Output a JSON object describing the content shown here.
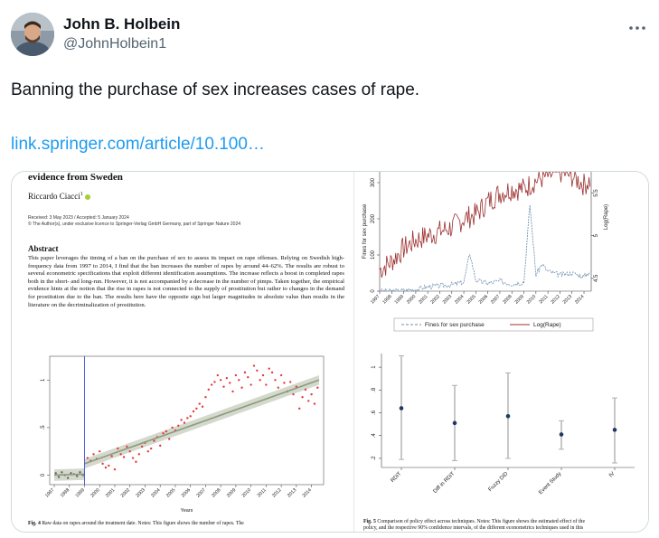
{
  "author": {
    "name": "John B. Holbein",
    "handle": "@JohnHolbein1",
    "avatar_icon": "person-avatar"
  },
  "more_icon": "more-horizontal-icon",
  "tweet": {
    "text": "Banning the purchase of sex increases cases of rape.",
    "link": "link.springer.com/article/10.100…"
  },
  "paper": {
    "title": "evidence from Sweden",
    "author": "Riccardo Ciacci",
    "author_sup": "1",
    "received": "Received: 3 May 2023 / Accepted: 5 January 2024",
    "copyright": "© The Author(s), under exclusive licence to Springer-Verlag GmbH Germany, part of Springer Nature 2024",
    "abstract_heading": "Abstract",
    "abstract": "This paper leverages the timing of a ban on the purchase of sex to assess its impact on rape offenses. Relying on Swedish high-frequency data from 1997 to 2014, I find that the ban increases the number of rapes by around 44–62%. The results are robust to several econometric specifications that exploit different identification assumptions. The increase reflects a boost in completed rapes both in the short- and long-run. However, it is not accompanied by a decrease in the number of pimps. Taken together, the empirical evidence hints at the notion that the rise in rapes is not connected to the supply of prostitution but rather to changes in the demand for prostitution due to the ban. The results here have the opposite sign but larger magnitudes in absolute value than results in the literature on the decriminalization of prostitution.",
    "fig4_caption_label": "Fig. 4",
    "fig4_caption": "Raw data on rapes around the treatment date. Notes: This figure shows the number of rapes. The",
    "fig5_caption_label": "Fig. 5",
    "fig5_caption": "Comparison of policy effect across techniques. Notes: This figure shows the estimated effect of the",
    "fig5_caption_line2": "policy, and the respective 90% confidence intervals, of the different econometrics techniques used in this"
  },
  "chart_data": [
    {
      "type": "scatter",
      "title": "",
      "xlabel": "Years",
      "ylabel": "",
      "x_ticks": [
        "1997",
        "1998",
        "1999",
        "2000",
        "2001",
        "2002",
        "2003",
        "2004",
        "2005",
        "2006",
        "2007",
        "2008",
        "2009",
        "2010",
        "2011",
        "2012",
        "2013",
        "2014"
      ],
      "y_ticks": [
        "0",
        ".5",
        "1"
      ],
      "ylim": [
        -0.1,
        1.25
      ],
      "treatment_year": 1999,
      "series": [
        {
          "values": [
            [
              1997.1,
              0.02
            ],
            [
              1997.3,
              -0.02
            ],
            [
              1997.5,
              0.03
            ],
            [
              1997.7,
              0.0
            ],
            [
              1997.9,
              -0.03
            ],
            [
              1998.1,
              0.02
            ],
            [
              1998.3,
              0.01
            ],
            [
              1998.5,
              -0.01
            ],
            [
              1998.7,
              0.03
            ],
            [
              1998.9,
              0.0
            ],
            [
              1999.2,
              0.18
            ],
            [
              1999.4,
              0.15
            ],
            [
              1999.6,
              0.22
            ],
            [
              1999.8,
              0.17
            ],
            [
              2000.0,
              0.25
            ],
            [
              2000.2,
              0.12
            ],
            [
              2000.4,
              0.08
            ],
            [
              2000.6,
              0.1
            ],
            [
              2000.8,
              0.2
            ],
            [
              2001.0,
              0.06
            ],
            [
              2001.2,
              0.28
            ],
            [
              2001.4,
              0.22
            ],
            [
              2001.6,
              0.19
            ],
            [
              2001.8,
              0.3
            ],
            [
              2002.0,
              0.25
            ],
            [
              2002.2,
              0.18
            ],
            [
              2002.4,
              0.14
            ],
            [
              2002.6,
              0.22
            ],
            [
              2002.8,
              0.3
            ],
            [
              2003.0,
              0.34
            ],
            [
              2003.2,
              0.25
            ],
            [
              2003.4,
              0.28
            ],
            [
              2003.6,
              0.36
            ],
            [
              2003.8,
              0.4
            ],
            [
              2004.0,
              0.31
            ],
            [
              2004.2,
              0.44
            ],
            [
              2004.4,
              0.46
            ],
            [
              2004.6,
              0.38
            ],
            [
              2004.8,
              0.5
            ],
            [
              2005.0,
              0.47
            ],
            [
              2005.2,
              0.52
            ],
            [
              2005.4,
              0.58
            ],
            [
              2005.6,
              0.55
            ],
            [
              2005.8,
              0.6
            ],
            [
              2006.0,
              0.62
            ],
            [
              2006.2,
              0.67
            ],
            [
              2006.4,
              0.7
            ],
            [
              2006.6,
              0.75
            ],
            [
              2006.8,
              0.72
            ],
            [
              2007.0,
              0.82
            ],
            [
              2007.2,
              0.9
            ],
            [
              2007.4,
              0.95
            ],
            [
              2007.6,
              0.98
            ],
            [
              2007.8,
              1.05
            ],
            [
              2008.0,
              1.0
            ],
            [
              2008.2,
              0.93
            ],
            [
              2008.4,
              1.02
            ],
            [
              2008.6,
              0.97
            ],
            [
              2008.8,
              0.88
            ],
            [
              2009.0,
              1.05
            ],
            [
              2009.2,
              1.0
            ],
            [
              2009.4,
              0.92
            ],
            [
              2009.6,
              1.08
            ],
            [
              2009.8,
              1.03
            ],
            [
              2010.0,
              0.95
            ],
            [
              2010.2,
              1.15
            ],
            [
              2010.4,
              1.1
            ],
            [
              2010.6,
              1.0
            ],
            [
              2010.8,
              1.05
            ],
            [
              2011.0,
              0.95
            ],
            [
              2011.2,
              1.12
            ],
            [
              2011.4,
              1.08
            ],
            [
              2011.6,
              1.0
            ],
            [
              2011.8,
              0.92
            ],
            [
              2012.0,
              1.05
            ],
            [
              2012.2,
              0.97
            ],
            [
              2012.4,
              0.88
            ],
            [
              2012.6,
              0.98
            ],
            [
              2012.8,
              0.85
            ],
            [
              2013.0,
              0.93
            ],
            [
              2013.2,
              0.7
            ],
            [
              2013.4,
              0.82
            ],
            [
              2013.6,
              0.9
            ],
            [
              2013.8,
              0.78
            ],
            [
              2014.0,
              0.85
            ],
            [
              2014.2,
              0.75
            ],
            [
              2014.4,
              0.92
            ]
          ]
        }
      ],
      "fit_lines": [
        {
          "x": [
            1997,
            1999
          ],
          "y": [
            0.0,
            0.01
          ]
        },
        {
          "x": [
            1999,
            2014.5
          ],
          "y": [
            0.12,
            1.0
          ]
        }
      ],
      "colors": {
        "points": "#e5393b",
        "fit": "#8e9b7d",
        "ci": "#c8cfc0",
        "treatment": "#3b4fd8"
      },
      "grid": false
    },
    {
      "type": "line",
      "title": "",
      "x_ticks": [
        "1997",
        "1998",
        "1999",
        "2000",
        "2001",
        "2002",
        "2003",
        "2004",
        "2005",
        "2006",
        "2007",
        "2008",
        "2009",
        "2010",
        "2011",
        "2012",
        "2013",
        "2014"
      ],
      "ylabel_left": "Fines for sex purchase",
      "ylabel_right": "Log(Rape)",
      "y_left_ticks": [
        "0",
        "100",
        "200",
        "300"
      ],
      "y_right_ticks": [
        "4.5",
        "5",
        "5.5"
      ],
      "ylim_left": [
        0,
        300
      ],
      "ylim_right": [
        4.35,
        5.75
      ],
      "legend": {
        "position": "bottom",
        "entries": [
          "Fines for sex purchase",
          "Log(Rape)"
        ]
      },
      "series": [
        {
          "name": "Fines for sex purchase",
          "axis": "left",
          "style": "dashed",
          "color": "#6b8cad",
          "x": [
            1997,
            1998,
            1999,
            2000,
            2001,
            2002,
            2003,
            2004,
            2004.5,
            2005,
            2006,
            2007,
            2008,
            2009,
            2009.5,
            2010,
            2010.5,
            2011,
            2012,
            2013,
            2014,
            2014.5
          ],
          "values": [
            0,
            0,
            2,
            5,
            12,
            15,
            18,
            25,
            105,
            30,
            22,
            28,
            20,
            25,
            240,
            45,
            75,
            55,
            45,
            50,
            40,
            55
          ]
        },
        {
          "name": "Log(Rape)",
          "axis": "right",
          "style": "solid",
          "color": "#9b3030",
          "x": [
            1997,
            1998,
            1999,
            2000,
            2001,
            2002,
            2003,
            2004,
            2005,
            2006,
            2007,
            2008,
            2009,
            2010,
            2011,
            2012,
            2013,
            2014,
            2014.5
          ],
          "values": [
            4.6,
            4.7,
            4.85,
            4.95,
            5.0,
            5.05,
            5.1,
            5.2,
            5.25,
            5.4,
            5.5,
            5.55,
            5.55,
            5.65,
            5.7,
            5.75,
            5.7,
            5.6,
            5.65
          ]
        }
      ],
      "grid": false
    },
    {
      "type": "scatter",
      "title": "",
      "categories": [
        "RDiT",
        "Diff in RDiT",
        "Fuzzy DiD",
        "Event Study",
        "IV"
      ],
      "values": [
        0.64,
        0.51,
        0.57,
        0.41,
        0.45
      ],
      "ci_low": [
        0.19,
        0.18,
        0.2,
        0.28,
        0.16
      ],
      "ci_high": [
        1.1,
        0.84,
        0.95,
        0.53,
        0.73
      ],
      "y_ticks": [
        ".2",
        ".4",
        ".6",
        ".8",
        "1"
      ],
      "ylim": [
        0.12,
        1.12
      ],
      "colors": {
        "point": "#1f3864",
        "ci": "#b0b0b0"
      },
      "grid": false
    }
  ]
}
